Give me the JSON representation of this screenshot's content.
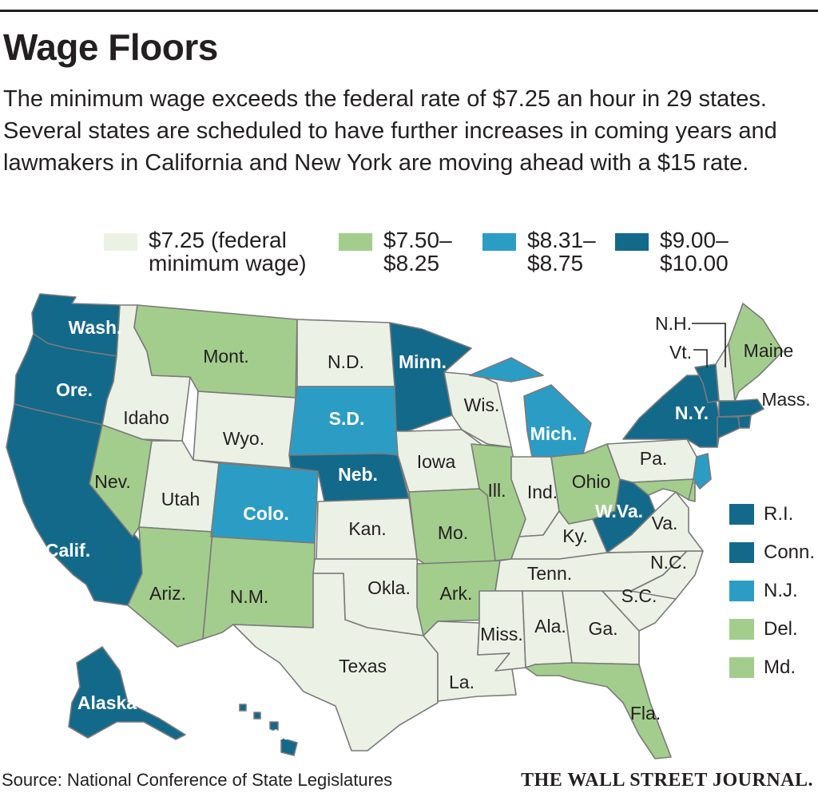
{
  "title": "Wage Floors",
  "subtitle": "The minimum wage exceeds the federal rate of $7.25 an hour in 29 states. Several states are scheduled to have further increases in coming years and lawmakers in California and New York are moving ahead with a $15 rate.",
  "legend": [
    {
      "key": "federal",
      "label": "$7.25 (federal\nminimum wage)",
      "color": "#ecf1e5"
    },
    {
      "key": "mid",
      "label": "$7.50–\n$8.25",
      "color": "#a3cd8d"
    },
    {
      "key": "high",
      "label": "$8.31–\n$8.75",
      "color": "#2b9dc5"
    },
    {
      "key": "top",
      "label": "$9.00–\n$10.00",
      "color": "#13698a"
    }
  ],
  "states": [
    {
      "name": "Wash.",
      "tier": "top"
    },
    {
      "name": "Ore.",
      "tier": "top"
    },
    {
      "name": "Calif.",
      "tier": "top"
    },
    {
      "name": "Idaho",
      "tier": "federal"
    },
    {
      "name": "Nev.",
      "tier": "mid"
    },
    {
      "name": "Mont.",
      "tier": "mid"
    },
    {
      "name": "Wyo.",
      "tier": "federal"
    },
    {
      "name": "Utah",
      "tier": "federal"
    },
    {
      "name": "Ariz.",
      "tier": "mid"
    },
    {
      "name": "Colo.",
      "tier": "high"
    },
    {
      "name": "N.M.",
      "tier": "mid"
    },
    {
      "name": "N.D.",
      "tier": "federal"
    },
    {
      "name": "S.D.",
      "tier": "high"
    },
    {
      "name": "Neb.",
      "tier": "top"
    },
    {
      "name": "Kan.",
      "tier": "federal"
    },
    {
      "name": "Okla.",
      "tier": "federal"
    },
    {
      "name": "Texas",
      "tier": "federal"
    },
    {
      "name": "Minn.",
      "tier": "top"
    },
    {
      "name": "Iowa",
      "tier": "federal"
    },
    {
      "name": "Mo.",
      "tier": "mid"
    },
    {
      "name": "Ark.",
      "tier": "mid"
    },
    {
      "name": "La.",
      "tier": "federal"
    },
    {
      "name": "Wis.",
      "tier": "federal"
    },
    {
      "name": "Ill.",
      "tier": "mid"
    },
    {
      "name": "Mich.",
      "tier": "high"
    },
    {
      "name": "Ind.",
      "tier": "federal"
    },
    {
      "name": "Ohio",
      "tier": "mid"
    },
    {
      "name": "Ky.",
      "tier": "federal"
    },
    {
      "name": "Tenn.",
      "tier": "federal"
    },
    {
      "name": "Miss.",
      "tier": "federal"
    },
    {
      "name": "Ala.",
      "tier": "federal"
    },
    {
      "name": "Ga.",
      "tier": "federal"
    },
    {
      "name": "Fla.",
      "tier": "mid"
    },
    {
      "name": "S.C.",
      "tier": "federal"
    },
    {
      "name": "N.C.",
      "tier": "federal"
    },
    {
      "name": "Va.",
      "tier": "federal"
    },
    {
      "name": "W.Va.",
      "tier": "top"
    },
    {
      "name": "Pa.",
      "tier": "federal"
    },
    {
      "name": "N.Y.",
      "tier": "top"
    },
    {
      "name": "Vt.",
      "tier": "top"
    },
    {
      "name": "N.H.",
      "tier": "federal"
    },
    {
      "name": "Maine",
      "tier": "mid"
    },
    {
      "name": "Mass.",
      "tier": "top"
    },
    {
      "name": "R.I.",
      "tier": "top"
    },
    {
      "name": "Conn.",
      "tier": "top"
    },
    {
      "name": "N.J.",
      "tier": "high"
    },
    {
      "name": "Del.",
      "tier": "mid"
    },
    {
      "name": "Md.",
      "tier": "mid"
    },
    {
      "name": "Alaska",
      "tier": "top"
    },
    {
      "name": "Hawaii",
      "tier": "top"
    }
  ],
  "northeast_legend": [
    {
      "name": "R.I.",
      "tier": "top"
    },
    {
      "name": "Conn.",
      "tier": "top"
    },
    {
      "name": "N.J.",
      "tier": "high"
    },
    {
      "name": "Del.",
      "tier": "mid"
    },
    {
      "name": "Md.",
      "tier": "mid"
    }
  ],
  "source": "Source: National Conference of State Legislatures",
  "credit": "THE WALL STREET JOURNAL."
}
